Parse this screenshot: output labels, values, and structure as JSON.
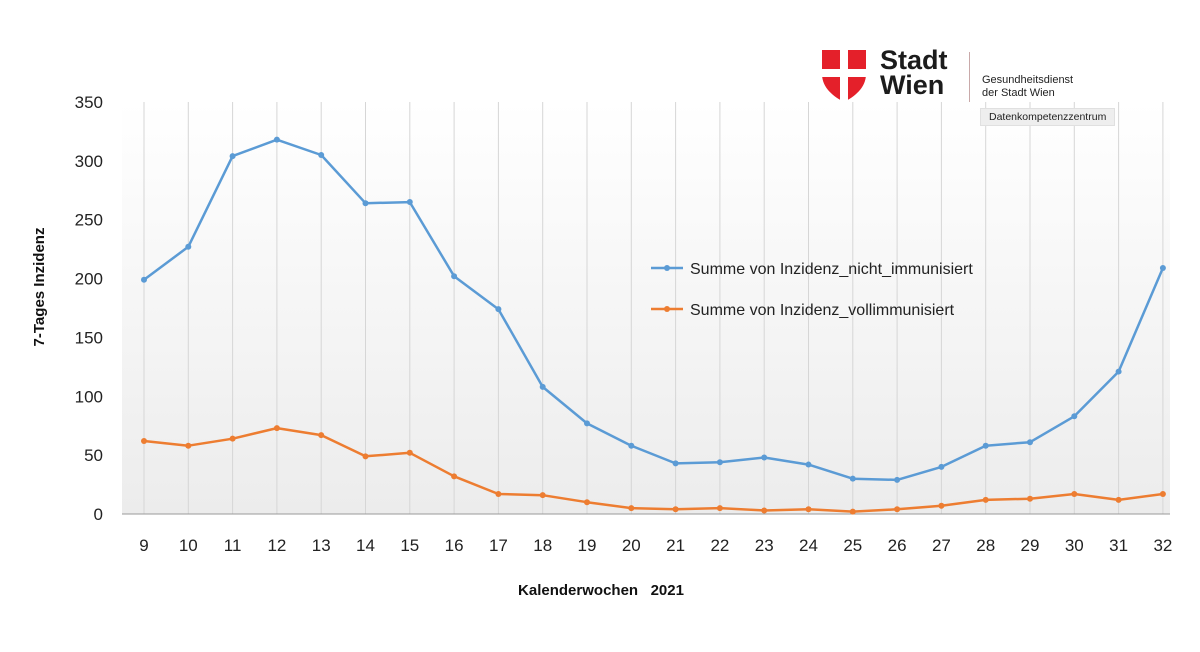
{
  "header": {
    "logo_word_line1": "Stadt",
    "logo_word_line2": "Wien",
    "dienst_line1": "Gesundheitsdienst",
    "dienst_line2": "der Stadt Wien",
    "badge": "Datenkompetenzzentrum",
    "brand_red": "#e4202a"
  },
  "chart_data": {
    "type": "line",
    "xlabel": "Kalenderwochen   2021",
    "ylabel": "7-Tages Inzidenz",
    "categories": [
      "9",
      "10",
      "11",
      "12",
      "13",
      "14",
      "15",
      "16",
      "17",
      "18",
      "19",
      "20",
      "21",
      "22",
      "23",
      "24",
      "25",
      "26",
      "27",
      "28",
      "29",
      "30",
      "31",
      "32"
    ],
    "ylim": [
      0,
      350
    ],
    "yticks": [
      0,
      50,
      100,
      150,
      200,
      250,
      300,
      350
    ],
    "grid": "vertical",
    "legend_position": "right",
    "series": [
      {
        "name": "Summe von Inzidenz_nicht_immunisiert",
        "color": "#5b9bd5",
        "values": [
          199,
          227,
          304,
          318,
          305,
          264,
          265,
          202,
          174,
          108,
          77,
          58,
          43,
          44,
          48,
          42,
          30,
          29,
          40,
          58,
          61,
          83,
          121,
          209
        ]
      },
      {
        "name": "Summe von Inzidenz_vollimmunisiert",
        "color": "#ed7d31",
        "values": [
          62,
          58,
          64,
          73,
          67,
          49,
          52,
          32,
          17,
          16,
          10,
          5,
          4,
          5,
          3,
          4,
          2,
          4,
          7,
          12,
          13,
          17,
          12,
          17
        ]
      }
    ]
  }
}
